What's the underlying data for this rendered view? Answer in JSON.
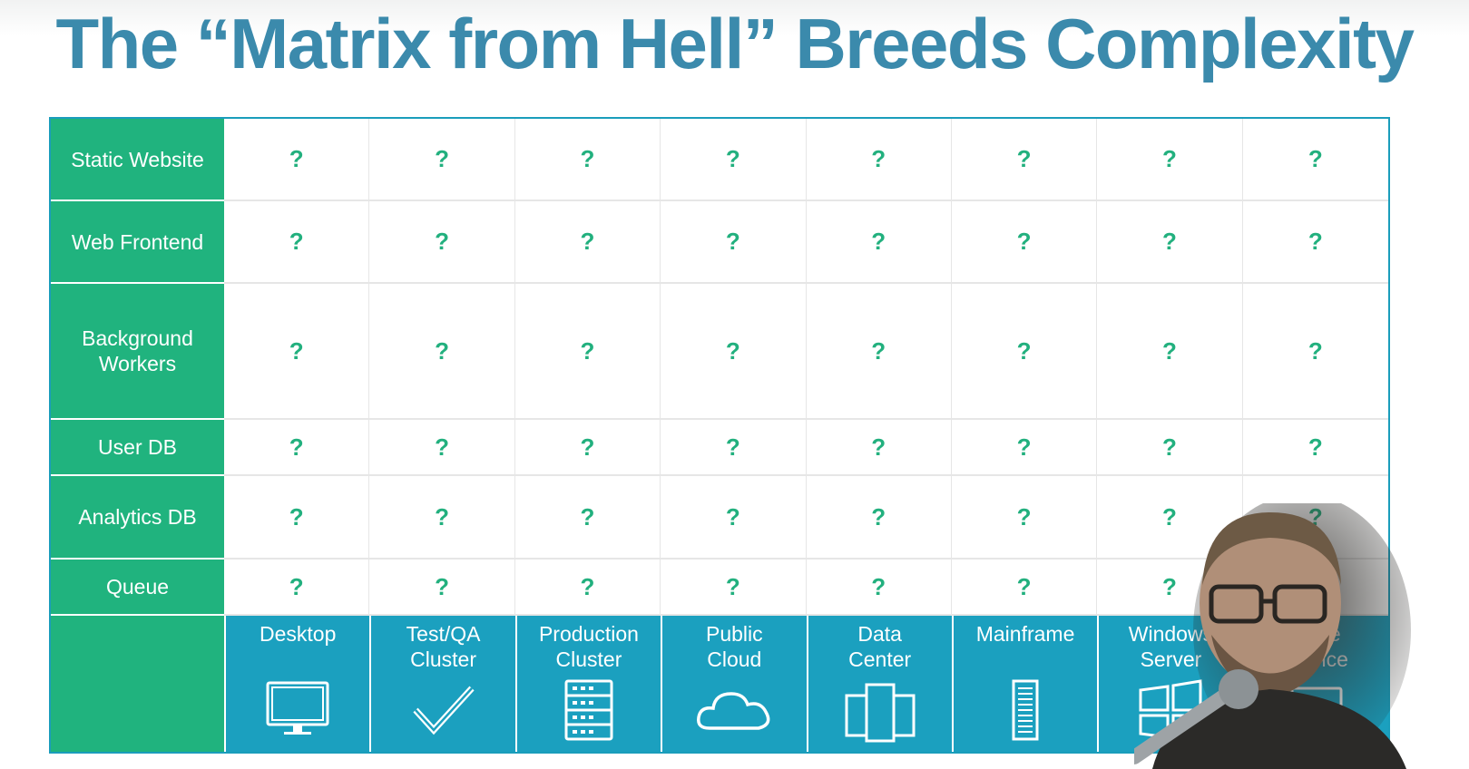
{
  "title": "The “Matrix from Hell” Breeds Complexity",
  "cell_mark": "?",
  "rows": [
    {
      "label": "Static Website"
    },
    {
      "label": "Web Frontend"
    },
    {
      "label": "Background\nWorkers"
    },
    {
      "label": "User DB"
    },
    {
      "label": "Analytics DB"
    },
    {
      "label": "Queue"
    }
  ],
  "environments": [
    {
      "label": "Desktop",
      "icon": "desktop-icon"
    },
    {
      "label": "Test/QA\nCluster",
      "icon": "checkmark-icon"
    },
    {
      "label": "Production\nCluster",
      "icon": "server-rack-icon"
    },
    {
      "label": "Public\nCloud",
      "icon": "cloud-icon"
    },
    {
      "label": "Data\nCenter",
      "icon": "data-center-icon"
    },
    {
      "label": "Mainframe",
      "icon": "mainframe-icon"
    },
    {
      "label": "Windows\nServer",
      "icon": "windows-icon"
    },
    {
      "label": "Edge\nDevice",
      "icon": "laptop-icon"
    }
  ],
  "colors": {
    "title": "#3b8aac",
    "row_label_bg": "#20b37e",
    "env_bg": "#1ba0bf",
    "question_mark": "#22b07e"
  }
}
